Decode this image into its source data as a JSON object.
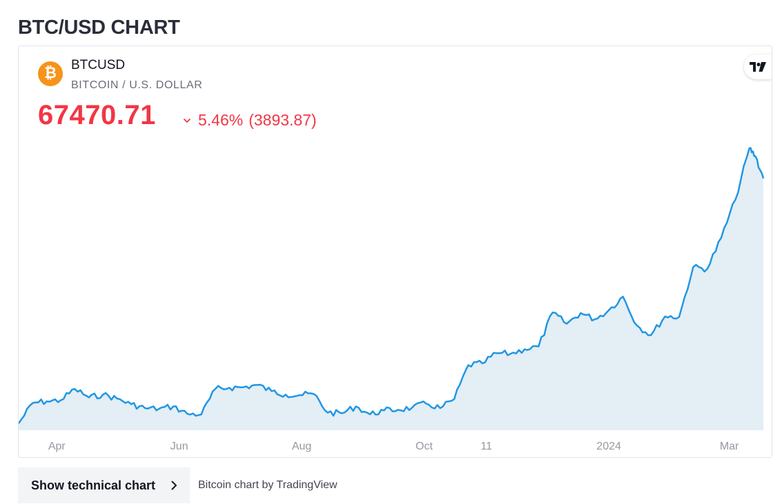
{
  "page": {
    "title": "BTC/USD CHART"
  },
  "header": {
    "symbol": "BTCUSD",
    "description": "BITCOIN / U.S. DOLLAR",
    "price": "67470.71",
    "change_percent": "5.46%",
    "change_value": "(3893.87)",
    "logo_icon": "bitcoin-icon",
    "logo_glyph": "₿",
    "brand_icon": "tradingview-logo-icon"
  },
  "colors": {
    "negative": "#f23645",
    "line": "#2196e3",
    "area": "#e3eef5",
    "bitcoin": "#f7931a"
  },
  "chart_data": {
    "type": "area",
    "x_tick_labels": [
      "Apr",
      "Jun",
      "Aug",
      "Oct",
      "11",
      "2024",
      "Mar"
    ],
    "x_tick_dates": [
      "2023-04-01",
      "2023-06-01",
      "2023-08-01",
      "2023-10-01",
      "2023-11-01",
      "2024-01-01",
      "2024-03-01"
    ],
    "x_range": [
      "2023-03-13",
      "2024-03-19"
    ],
    "y_range": [
      23000,
      75000
    ],
    "grid": false,
    "legend": "none",
    "series": [
      {
        "x": [
          "2023-03-13",
          "2023-03-20",
          "2023-03-27",
          "2023-04-03",
          "2023-04-10",
          "2023-04-17",
          "2023-04-24",
          "2023-05-01",
          "2023-05-08",
          "2023-05-15",
          "2023-05-22",
          "2023-05-29",
          "2023-06-05",
          "2023-06-12",
          "2023-06-19",
          "2023-06-26",
          "2023-07-03",
          "2023-07-10",
          "2023-07-17",
          "2023-07-24",
          "2023-07-31",
          "2023-08-07",
          "2023-08-14",
          "2023-08-21",
          "2023-08-28",
          "2023-09-04",
          "2023-09-11",
          "2023-09-18",
          "2023-09-25",
          "2023-10-02",
          "2023-10-09",
          "2023-10-16",
          "2023-10-23",
          "2023-10-30",
          "2023-11-06",
          "2023-11-13",
          "2023-11-20",
          "2023-11-27",
          "2023-12-04",
          "2023-12-11",
          "2023-12-18",
          "2023-12-25",
          "2024-01-01",
          "2024-01-08",
          "2024-01-15",
          "2024-01-22",
          "2024-01-29",
          "2024-02-05",
          "2024-02-12",
          "2024-02-19",
          "2024-02-26",
          "2024-03-04",
          "2024-03-11",
          "2024-03-14",
          "2024-03-18"
        ],
        "y": [
          24200,
          27800,
          28100,
          28300,
          30300,
          28800,
          29300,
          28600,
          27600,
          26900,
          26800,
          27200,
          25900,
          25800,
          30300,
          30500,
          30600,
          31000,
          29900,
          29300,
          29200,
          29400,
          26100,
          26000,
          27200,
          25800,
          26500,
          26600,
          27000,
          27700,
          26900,
          28500,
          34500,
          34800,
          36600,
          36500,
          37300,
          37800,
          43800,
          41800,
          43700,
          42600,
          44200,
          46600,
          41500,
          39800,
          43100,
          43000,
          51800,
          51500,
          57000,
          63700,
          72800,
          71400,
          67470
        ]
      }
    ]
  },
  "footer": {
    "tech_button_label": "Show technical chart",
    "tech_button_icon": "chevron-right-icon",
    "credit": "Bitcoin chart by TradingView"
  }
}
